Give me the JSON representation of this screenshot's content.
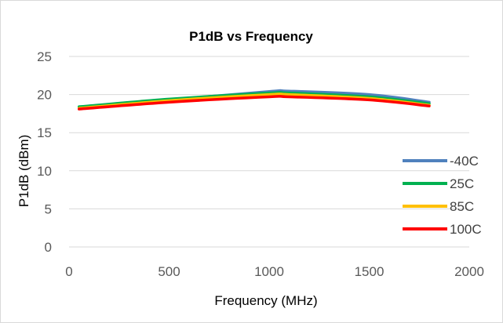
{
  "chart_data": {
    "type": "line",
    "title": "P1dB vs Frequency",
    "xlabel": "Frequency (MHz)",
    "ylabel": "P1dB (dBm)",
    "xlim": [
      0,
      2000
    ],
    "ylim": [
      0,
      25
    ],
    "xticks": [
      0,
      500,
      1000,
      1500,
      2000
    ],
    "yticks": [
      0,
      5,
      10,
      15,
      20,
      25
    ],
    "grid": "horizontal",
    "legend_position": "right",
    "series": [
      {
        "name": "-40C",
        "color": "#4f81bd",
        "points": [
          [
            50,
            18.3
          ],
          [
            500,
            19.3
          ],
          [
            1000,
            20.4
          ],
          [
            1100,
            20.45
          ],
          [
            1500,
            20.0
          ],
          [
            1800,
            19.0
          ]
        ]
      },
      {
        "name": "25C",
        "color": "#00b050",
        "points": [
          [
            50,
            18.4
          ],
          [
            500,
            19.4
          ],
          [
            1000,
            20.2
          ],
          [
            1100,
            20.2
          ],
          [
            1500,
            19.7
          ],
          [
            1800,
            18.8
          ]
        ]
      },
      {
        "name": "85C",
        "color": "#ffc000",
        "points": [
          [
            50,
            18.2
          ],
          [
            500,
            19.2
          ],
          [
            1000,
            20.0
          ],
          [
            1100,
            20.0
          ],
          [
            1500,
            19.5
          ],
          [
            1800,
            18.6
          ]
        ]
      },
      {
        "name": "100C",
        "color": "#ff0000",
        "points": [
          [
            50,
            18.1
          ],
          [
            500,
            19.0
          ],
          [
            1000,
            19.7
          ],
          [
            1100,
            19.7
          ],
          [
            1500,
            19.3
          ],
          [
            1800,
            18.5
          ]
        ]
      }
    ]
  }
}
